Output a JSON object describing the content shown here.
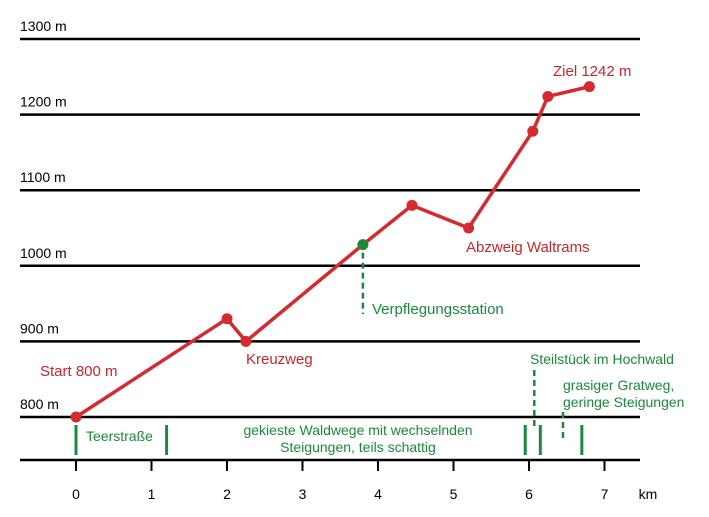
{
  "chart_data": {
    "type": "line",
    "y_ticks": [
      {
        "value": 800,
        "label": "800 m"
      },
      {
        "value": 900,
        "label": "900 m"
      },
      {
        "value": 1000,
        "label": "1000 m"
      },
      {
        "value": 1100,
        "label": "1100 m"
      },
      {
        "value": 1200,
        "label": "1200 m"
      },
      {
        "value": 1300,
        "label": "1300 m"
      }
    ],
    "x_ticks": [
      "0",
      "1",
      "2",
      "3",
      "4",
      "5",
      "6",
      "7"
    ],
    "x_unit": "km",
    "xlim": [
      0,
      7
    ],
    "ylim": [
      800,
      1300
    ],
    "points": [
      {
        "x": 0.0,
        "y": 800
      },
      {
        "x": 2.0,
        "y": 930
      },
      {
        "x": 2.25,
        "y": 900
      },
      {
        "x": 3.8,
        "y": 1028
      },
      {
        "x": 4.45,
        "y": 1080
      },
      {
        "x": 5.2,
        "y": 1050
      },
      {
        "x": 6.05,
        "y": 1178
      },
      {
        "x": 6.25,
        "y": 1224
      },
      {
        "x": 6.8,
        "y": 1237
      }
    ],
    "special_points": [
      {
        "x": 3.8,
        "y": 1028,
        "color": "#1a8a3a"
      }
    ],
    "annotations": {
      "start": "Start 800 m",
      "kreuzweg": "Kreuzweg",
      "verpflegung": "Verpflegungsstation",
      "abzweig": "Abzweig Waltrams",
      "ziel": "Ziel 1242 m"
    },
    "segments": {
      "teerstrasse": "Teerstraße",
      "waldwege_line1": "gekieste Waldwege mit wechselnden",
      "waldwege_line2": "Steigungen, teils schattig",
      "steilstueck": "Steilstück im Hochwald",
      "gratweg_line1": "grasiger Gratweg,",
      "gratweg_line2": "geringe Steigungen"
    },
    "colors": {
      "route": "#d42a30",
      "marker": "#d42a30",
      "annotation_red": "#c8262c",
      "annotation_green": "#1a8a3a",
      "grid": "#000000"
    }
  }
}
